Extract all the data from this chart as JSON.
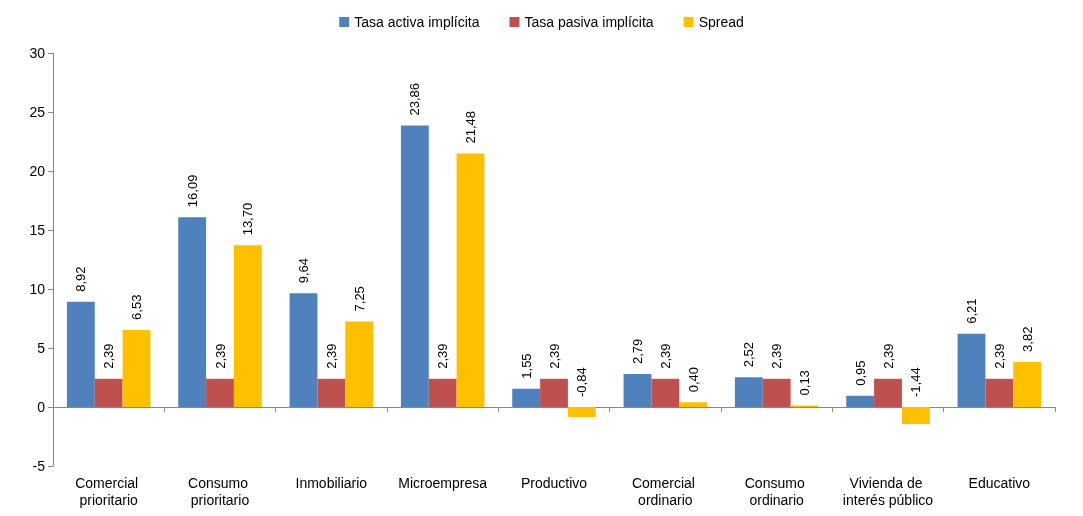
{
  "chart_data": {
    "type": "bar",
    "categories": [
      "Comercial prioritario",
      "Consumo prioritario",
      "Inmobiliario",
      "Microempresa",
      "Productivo",
      "Comercial ordinario",
      "Consumo ordinario",
      "Vivienda de interés público",
      "Educativo"
    ],
    "series": [
      {
        "name": "Tasa activa implícita",
        "color": "#4f81bd",
        "values": [
          8.92,
          16.09,
          9.64,
          23.86,
          1.55,
          2.79,
          2.52,
          0.95,
          6.21
        ],
        "value_labels": [
          "8,92",
          "16,09",
          "9,64",
          "23,86",
          "1,55",
          "2,79",
          "2,52",
          "0,95",
          "6,21"
        ]
      },
      {
        "name": "Tasa pasiva implícita",
        "color": "#c0504d",
        "values": [
          2.39,
          2.39,
          2.39,
          2.39,
          2.39,
          2.39,
          2.39,
          2.39,
          2.39
        ],
        "value_labels": [
          "2,39",
          "2,39",
          "2,39",
          "2,39",
          "2,39",
          "2,39",
          "2,39",
          "2,39",
          "2,39"
        ]
      },
      {
        "name": "Spread",
        "color": "#ffc000",
        "values": [
          6.53,
          13.7,
          7.25,
          21.48,
          -0.84,
          0.4,
          0.13,
          -1.44,
          3.82
        ],
        "value_labels": [
          "6,53",
          "13,70",
          "7,25",
          "21,48",
          "-0,84",
          "0,40",
          "0,13",
          "-1,44",
          "3,82"
        ]
      }
    ],
    "ylim": [
      -5,
      30
    ],
    "yticks": [
      -5,
      0,
      5,
      10,
      15,
      20,
      25,
      30
    ],
    "legend": "top"
  }
}
